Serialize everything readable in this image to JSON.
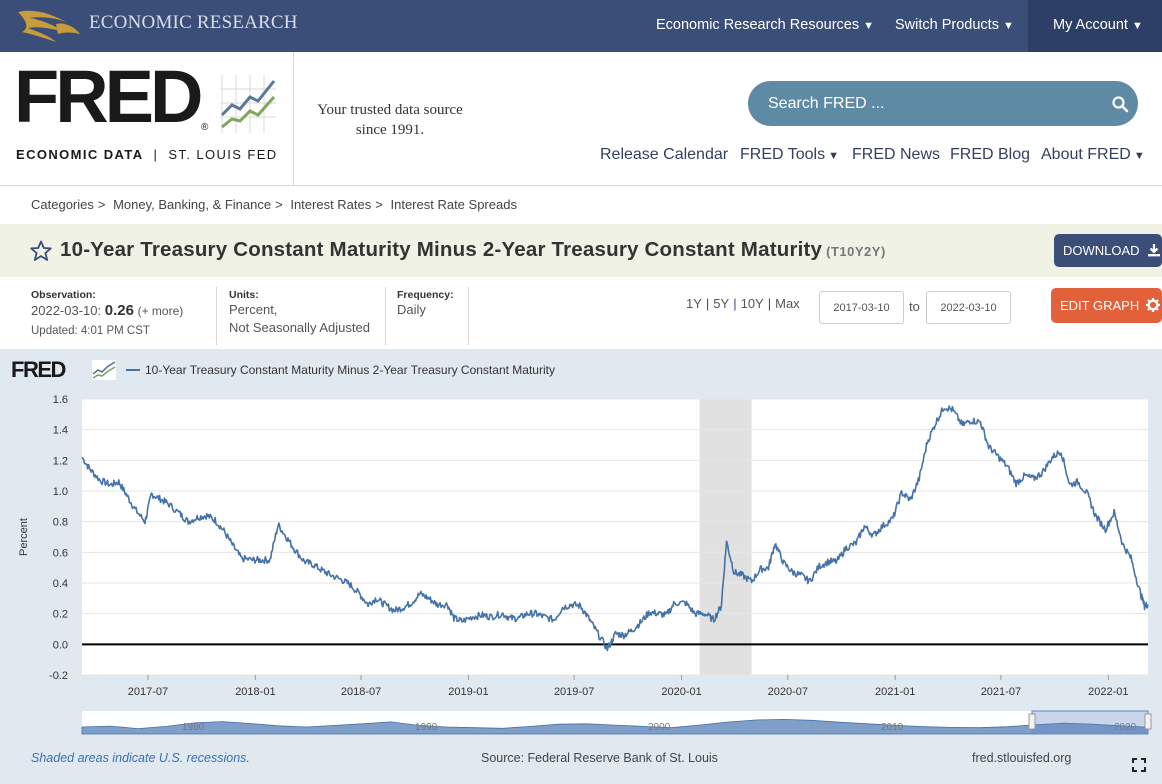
{
  "topbar": {
    "brand": "ECONOMIC RESEARCH",
    "nav": [
      "Economic Research Resources",
      "Switch Products",
      "My Account"
    ]
  },
  "header": {
    "logo_word": "FRED",
    "logo_reg": "®",
    "logo_sub_bold": "ECONOMIC DATA",
    "logo_sub_sep": "|",
    "logo_sub": "ST. LOUIS FED",
    "tagline_1": "Your trusted data source",
    "tagline_2": "since 1991.",
    "search_placeholder": "Search FRED ...",
    "nav": [
      "Release Calendar",
      "FRED Tools",
      "FRED News",
      "FRED Blog",
      "About FRED"
    ]
  },
  "breadcrumb": [
    "Categories",
    "Money, Banking, & Finance",
    "Interest Rates",
    "Interest Rate Spreads"
  ],
  "series": {
    "title": "10-Year Treasury Constant Maturity Minus 2-Year Treasury Constant Maturity",
    "id": "(T10Y2Y)",
    "download_label": "DOWNLOAD",
    "edit_label": "EDIT GRAPH"
  },
  "meta": {
    "observation_label": "Observation:",
    "observation_date": "2022-03-10:",
    "observation_value": "0.26",
    "observation_more": "(+ more)",
    "updated": "Updated: 4:01 PM CST",
    "units_label": "Units:",
    "units_1": "Percent,",
    "units_2": "Not Seasonally Adjusted",
    "frequency_label": "Frequency:",
    "frequency": "Daily"
  },
  "range": {
    "links": [
      "1Y",
      "5Y",
      "10Y",
      "Max"
    ],
    "start": "2017-03-10",
    "to": "to",
    "end": "2022-03-10"
  },
  "chart_panel": {
    "logo": "FRED",
    "recession_note": "Shaded areas indicate U.S. recessions.",
    "source": "Source: Federal Reserve Bank of St. Louis",
    "url": "fred.stlouisfed.org"
  },
  "chart_data": {
    "type": "line",
    "title": "",
    "xlabel": "",
    "ylabel": "Percent",
    "ylim": [
      -0.2,
      1.6
    ],
    "yticks": [
      "-0.2",
      "0.0",
      "0.2",
      "0.4",
      "0.6",
      "0.8",
      "1.0",
      "1.2",
      "1.4",
      "1.6"
    ],
    "xticks": [
      "2017-07",
      "2018-01",
      "2018-07",
      "2019-01",
      "2019-07",
      "2020-01",
      "2020-07",
      "2021-01",
      "2021-07",
      "2022-01"
    ],
    "xlim": [
      "2017-03-10",
      "2022-03-10"
    ],
    "grid": true,
    "legend": "top-left",
    "recessions": [
      [
        "2020-02-01",
        "2020-04-30"
      ]
    ],
    "zero_line": 0,
    "navigator_labels": [
      "1980",
      "1990",
      "2000",
      "2010",
      "2020"
    ],
    "colors": {
      "line": "#4572a7",
      "recession": "#e1e1e1",
      "navigator": "#7f9fc9"
    },
    "series": [
      {
        "name": "10-Year Treasury Constant Maturity Minus 2-Year Treasury Constant Maturity",
        "points": [
          [
            "2017-03-10",
            1.22
          ],
          [
            "2017-03-24",
            1.14
          ],
          [
            "2017-04-10",
            1.07
          ],
          [
            "2017-04-28",
            1.04
          ],
          [
            "2017-05-12",
            1.06
          ],
          [
            "2017-05-26",
            0.97
          ],
          [
            "2017-06-09",
            0.88
          ],
          [
            "2017-06-26",
            0.8
          ],
          [
            "2017-07-07",
            0.98
          ],
          [
            "2017-07-21",
            0.95
          ],
          [
            "2017-08-04",
            0.92
          ],
          [
            "2017-08-25",
            0.85
          ],
          [
            "2017-09-08",
            0.8
          ],
          [
            "2017-09-25",
            0.83
          ],
          [
            "2017-10-10",
            0.84
          ],
          [
            "2017-10-24",
            0.81
          ],
          [
            "2017-11-08",
            0.74
          ],
          [
            "2017-11-24",
            0.64
          ],
          [
            "2017-12-08",
            0.56
          ],
          [
            "2017-12-27",
            0.55
          ],
          [
            "2018-01-10",
            0.55
          ],
          [
            "2018-01-26",
            0.55
          ],
          [
            "2018-02-09",
            0.78
          ],
          [
            "2018-02-23",
            0.7
          ],
          [
            "2018-03-09",
            0.62
          ],
          [
            "2018-03-26",
            0.54
          ],
          [
            "2018-04-10",
            0.52
          ],
          [
            "2018-04-26",
            0.48
          ],
          [
            "2018-05-11",
            0.45
          ],
          [
            "2018-05-29",
            0.42
          ],
          [
            "2018-06-12",
            0.39
          ],
          [
            "2018-06-28",
            0.33
          ],
          [
            "2018-07-13",
            0.26
          ],
          [
            "2018-07-27",
            0.3
          ],
          [
            "2018-08-10",
            0.26
          ],
          [
            "2018-08-27",
            0.22
          ],
          [
            "2018-09-11",
            0.24
          ],
          [
            "2018-09-25",
            0.27
          ],
          [
            "2018-10-10",
            0.33
          ],
          [
            "2018-10-25",
            0.3
          ],
          [
            "2018-11-08",
            0.26
          ],
          [
            "2018-11-26",
            0.26
          ],
          [
            "2018-12-07",
            0.17
          ],
          [
            "2018-12-21",
            0.15
          ],
          [
            "2019-01-08",
            0.18
          ],
          [
            "2019-01-25",
            0.19
          ],
          [
            "2019-02-08",
            0.18
          ],
          [
            "2019-02-28",
            0.2
          ],
          [
            "2019-03-14",
            0.17
          ],
          [
            "2019-03-28",
            0.17
          ],
          [
            "2019-04-12",
            0.2
          ],
          [
            "2019-04-26",
            0.2
          ],
          [
            "2019-05-10",
            0.18
          ],
          [
            "2019-05-28",
            0.16
          ],
          [
            "2019-06-11",
            0.24
          ],
          [
            "2019-06-27",
            0.26
          ],
          [
            "2019-07-12",
            0.25
          ],
          [
            "2019-07-26",
            0.17
          ],
          [
            "2019-08-09",
            0.08
          ],
          [
            "2019-08-27",
            -0.03
          ],
          [
            "2019-09-10",
            0.07
          ],
          [
            "2019-09-24",
            0.06
          ],
          [
            "2019-10-08",
            0.09
          ],
          [
            "2019-10-22",
            0.14
          ],
          [
            "2019-11-07",
            0.21
          ],
          [
            "2019-11-22",
            0.2
          ],
          [
            "2019-12-06",
            0.19
          ],
          [
            "2019-12-20",
            0.27
          ],
          [
            "2020-01-08",
            0.27
          ],
          [
            "2020-01-24",
            0.2
          ],
          [
            "2020-02-10",
            0.2
          ],
          [
            "2020-02-25",
            0.16
          ],
          [
            "2020-03-09",
            0.25
          ],
          [
            "2020-03-18",
            0.67
          ],
          [
            "2020-03-31",
            0.47
          ],
          [
            "2020-04-14",
            0.45
          ],
          [
            "2020-04-30",
            0.41
          ],
          [
            "2020-05-15",
            0.49
          ],
          [
            "2020-05-29",
            0.5
          ],
          [
            "2020-06-09",
            0.66
          ],
          [
            "2020-06-24",
            0.53
          ],
          [
            "2020-07-09",
            0.47
          ],
          [
            "2020-07-24",
            0.45
          ],
          [
            "2020-08-07",
            0.41
          ],
          [
            "2020-08-24",
            0.51
          ],
          [
            "2020-09-09",
            0.54
          ],
          [
            "2020-09-23",
            0.54
          ],
          [
            "2020-10-09",
            0.63
          ],
          [
            "2020-10-26",
            0.66
          ],
          [
            "2020-11-09",
            0.77
          ],
          [
            "2020-11-25",
            0.71
          ],
          [
            "2020-12-10",
            0.77
          ],
          [
            "2020-12-28",
            0.82
          ],
          [
            "2021-01-12",
            0.99
          ],
          [
            "2021-01-27",
            0.94
          ],
          [
            "2021-02-11",
            1.08
          ],
          [
            "2021-02-25",
            1.32
          ],
          [
            "2021-03-12",
            1.45
          ],
          [
            "2021-03-26",
            1.55
          ],
          [
            "2021-04-09",
            1.53
          ],
          [
            "2021-04-26",
            1.43
          ],
          [
            "2021-05-11",
            1.46
          ],
          [
            "2021-05-27",
            1.45
          ],
          [
            "2021-06-10",
            1.29
          ],
          [
            "2021-06-25",
            1.23
          ],
          [
            "2021-07-12",
            1.16
          ],
          [
            "2021-07-27",
            1.05
          ],
          [
            "2021-08-11",
            1.1
          ],
          [
            "2021-08-26",
            1.08
          ],
          [
            "2021-09-10",
            1.12
          ],
          [
            "2021-09-27",
            1.22
          ],
          [
            "2021-10-12",
            1.26
          ],
          [
            "2021-10-27",
            1.04
          ],
          [
            "2021-11-10",
            1.06
          ],
          [
            "2021-11-26",
            0.98
          ],
          [
            "2021-12-10",
            0.84
          ],
          [
            "2021-12-27",
            0.75
          ],
          [
            "2022-01-11",
            0.86
          ],
          [
            "2022-01-26",
            0.65
          ],
          [
            "2022-02-09",
            0.56
          ],
          [
            "2022-02-23",
            0.36
          ],
          [
            "2022-03-04",
            0.25
          ],
          [
            "2022-03-10",
            0.26
          ]
        ]
      }
    ],
    "navigator": [
      0.3,
      0.6,
      -0.2,
      0.5,
      1.6,
      2.0,
      1.4,
      0.7,
      0.3,
      0.8,
      1.3,
      1.9,
      0.8,
      0.3,
      0.1,
      -0.1,
      0.5,
      1.2,
      1.3,
      0.9,
      0.5,
      0.1,
      0.9,
      1.8,
      2.5,
      2.7,
      2.4,
      1.8,
      1.3,
      0.8,
      0.4,
      0.2,
      0.1,
      0.4,
      1.0,
      1.5,
      1.2,
      0.7,
      0.25
    ]
  }
}
